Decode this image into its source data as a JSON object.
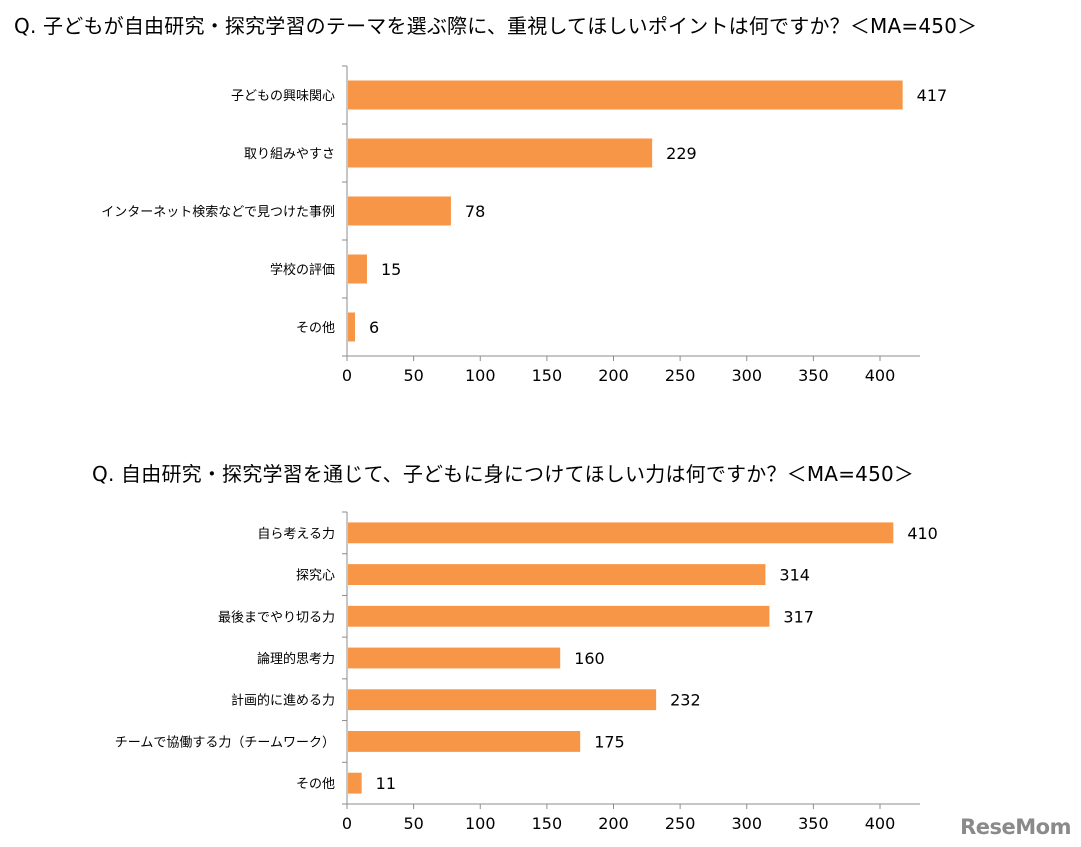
{
  "watermark": "ReseMom",
  "colors": {
    "bar": "#F79646",
    "axis": "#8c8c8c"
  },
  "chart_data": [
    {
      "type": "bar",
      "orientation": "horizontal",
      "title": "Q. 子どもが自由研究・探究学習のテーマを選ぶ際に、重視してほしいポイントは何ですか？＜MA=450＞",
      "categories": [
        "子どもの興味関心",
        "取り組みやすさ",
        "インターネット検索などで見つけた事例",
        "学校の評価",
        "その他"
      ],
      "values": [
        417,
        229,
        78,
        15,
        6
      ],
      "xlim": [
        0,
        430
      ],
      "xticks": [
        0,
        50,
        100,
        150,
        200,
        250,
        300,
        350,
        400
      ],
      "grid": false,
      "data_labels": true
    },
    {
      "type": "bar",
      "orientation": "horizontal",
      "title": "Q. 自由研究・探究学習を通じて、子どもに身につけてほしい力は何ですか？＜MA=450＞",
      "categories": [
        "自ら考える力",
        "探究心",
        "最後までやり切る力",
        "論理的思考力",
        "計画的に進める力",
        "チームで協働する力（チームワーク）",
        "その他"
      ],
      "values": [
        410,
        314,
        317,
        160,
        232,
        175,
        11
      ],
      "xlim": [
        0,
        430
      ],
      "xticks": [
        0,
        50,
        100,
        150,
        200,
        250,
        300,
        350,
        400
      ],
      "grid": false,
      "data_labels": true
    }
  ]
}
